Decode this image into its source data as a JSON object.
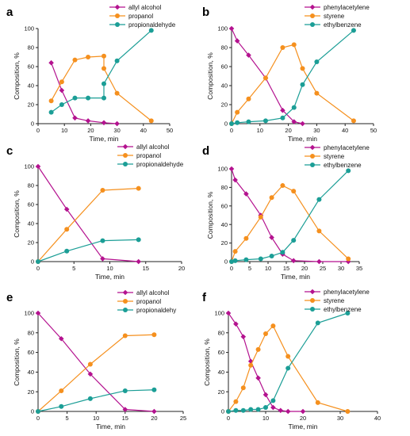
{
  "colors": {
    "magenta": "#b4128f",
    "orange": "#f5901e",
    "teal": "#1b9e96"
  },
  "chart_data": [
    {
      "letter": "a",
      "type": "line",
      "xlabel": "Time, min",
      "ylabel": "Composition, %",
      "xlim": [
        0,
        50
      ],
      "ylim": [
        0,
        100
      ],
      "xticks": [
        0,
        10,
        20,
        30,
        40,
        50
      ],
      "yticks": [
        0,
        20,
        40,
        60,
        80,
        100
      ],
      "legend_position": "top-center",
      "series": [
        {
          "name": "allyl alcohol",
          "marker": "diamond",
          "color": "#b4128f",
          "points": [
            [
              5,
              64
            ],
            [
              9,
              35
            ],
            [
              14,
              6
            ],
            [
              19,
              3
            ],
            [
              25,
              1
            ],
            [
              30,
              0
            ]
          ]
        },
        {
          "name": "propanol",
          "marker": "circle",
          "color": "#f5901e",
          "points": [
            [
              5,
              24
            ],
            [
              9,
              44
            ],
            [
              14,
              67
            ],
            [
              19,
              70
            ],
            [
              25,
              71
            ],
            [
              25,
              58
            ],
            [
              30,
              32
            ],
            [
              43,
              3
            ]
          ]
        },
        {
          "name": "propionaldehyde",
          "marker": "circle",
          "color": "#1b9e96",
          "points": [
            [
              5,
              12
            ],
            [
              9,
              20
            ],
            [
              14,
              27
            ],
            [
              19,
              27
            ],
            [
              25,
              27
            ],
            [
              25,
              42
            ],
            [
              30,
              66
            ],
            [
              43,
              98
            ]
          ]
        }
      ]
    },
    {
      "letter": "b",
      "type": "line",
      "xlabel": "Time, min",
      "ylabel": "Composition, %",
      "xlim": [
        0,
        50
      ],
      "ylim": [
        0,
        100
      ],
      "xticks": [
        0,
        10,
        20,
        30,
        40,
        50
      ],
      "yticks": [
        0,
        20,
        40,
        60,
        80,
        100
      ],
      "legend_position": "top-right",
      "series": [
        {
          "name": "phenylacetylene",
          "marker": "diamond",
          "color": "#b4128f",
          "points": [
            [
              0,
              100
            ],
            [
              2,
              87
            ],
            [
              6,
              72
            ],
            [
              12,
              48
            ],
            [
              18,
              14
            ],
            [
              22,
              2
            ],
            [
              25,
              0
            ]
          ]
        },
        {
          "name": "styrene",
          "marker": "circle",
          "color": "#f5901e",
          "points": [
            [
              0,
              0
            ],
            [
              2,
              12
            ],
            [
              6,
              26
            ],
            [
              12,
              48
            ],
            [
              18,
              80
            ],
            [
              22,
              83
            ],
            [
              25,
              58
            ],
            [
              30,
              32
            ],
            [
              43,
              3
            ]
          ]
        },
        {
          "name": "ethylbenzene",
          "marker": "circle",
          "color": "#1b9e96",
          "points": [
            [
              0,
              0
            ],
            [
              2,
              1
            ],
            [
              6,
              2
            ],
            [
              12,
              3
            ],
            [
              18,
              6
            ],
            [
              22,
              17
            ],
            [
              25,
              41
            ],
            [
              30,
              65
            ],
            [
              43,
              98
            ]
          ]
        }
      ]
    },
    {
      "letter": "c",
      "type": "line",
      "xlabel": "Time, min",
      "ylabel": "Composition, %",
      "xlim": [
        0,
        20
      ],
      "ylim": [
        0,
        100
      ],
      "xticks": [
        0,
        5,
        10,
        15,
        20
      ],
      "yticks": [
        0,
        20,
        40,
        60,
        80,
        100
      ],
      "legend_position": "top-center",
      "series": [
        {
          "name": "allyl alcohol",
          "marker": "diamond",
          "color": "#b4128f",
          "points": [
            [
              0,
              100
            ],
            [
              4,
              55
            ],
            [
              9,
              3
            ],
            [
              14,
              0
            ]
          ]
        },
        {
          "name": "propanol",
          "marker": "circle",
          "color": "#f5901e",
          "points": [
            [
              0,
              0
            ],
            [
              4,
              34
            ],
            [
              9,
              75
            ],
            [
              14,
              77
            ]
          ]
        },
        {
          "name": "propionaldehyde",
          "marker": "circle",
          "color": "#1b9e96",
          "points": [
            [
              0,
              0
            ],
            [
              4,
              11
            ],
            [
              9,
              22
            ],
            [
              14,
              23
            ]
          ]
        }
      ]
    },
    {
      "letter": "d",
      "type": "line",
      "xlabel": "Time, min",
      "ylabel": "Composition, %",
      "xlim": [
        0,
        35
      ],
      "ylim": [
        0,
        100
      ],
      "xticks": [
        0,
        5,
        10,
        15,
        20,
        25,
        30,
        35
      ],
      "yticks": [
        0,
        20,
        40,
        60,
        80,
        100
      ],
      "legend_position": "top-right",
      "series": [
        {
          "name": "phenylacetylene",
          "marker": "diamond",
          "color": "#b4128f",
          "points": [
            [
              0,
              100
            ],
            [
              1,
              88
            ],
            [
              4,
              73
            ],
            [
              8,
              50
            ],
            [
              11,
              26
            ],
            [
              14,
              8
            ],
            [
              17,
              1
            ],
            [
              24,
              0
            ],
            [
              32,
              0
            ]
          ]
        },
        {
          "name": "styrene",
          "marker": "circle",
          "color": "#f5901e",
          "points": [
            [
              0,
              0
            ],
            [
              1,
              11
            ],
            [
              4,
              25
            ],
            [
              8,
              48
            ],
            [
              11,
              69
            ],
            [
              14,
              82
            ],
            [
              17,
              76
            ],
            [
              24,
              33
            ],
            [
              32,
              3
            ]
          ]
        },
        {
          "name": "ethylbenzene",
          "marker": "circle",
          "color": "#1b9e96",
          "points": [
            [
              0,
              0
            ],
            [
              1,
              1
            ],
            [
              4,
              2
            ],
            [
              8,
              3
            ],
            [
              11,
              6
            ],
            [
              14,
              10
            ],
            [
              17,
              23
            ],
            [
              24,
              67
            ],
            [
              32,
              98
            ]
          ]
        }
      ]
    },
    {
      "letter": "e",
      "type": "line",
      "xlabel": "Time, min",
      "ylabel": "Composition, %",
      "xlim": [
        0,
        25
      ],
      "ylim": [
        0,
        100
      ],
      "xticks": [
        0,
        5,
        10,
        15,
        20,
        25
      ],
      "yticks": [
        0,
        20,
        40,
        60,
        80,
        100
      ],
      "legend_position": "top-center",
      "series": [
        {
          "name": "allyl alcohol",
          "marker": "diamond",
          "color": "#b4128f",
          "points": [
            [
              0,
              100
            ],
            [
              4,
              74
            ],
            [
              9,
              38
            ],
            [
              15,
              2
            ],
            [
              20,
              0
            ]
          ]
        },
        {
          "name": "propanol",
          "marker": "circle",
          "color": "#f5901e",
          "points": [
            [
              0,
              0
            ],
            [
              4,
              21
            ],
            [
              9,
              48
            ],
            [
              15,
              77
            ],
            [
              20,
              78
            ]
          ]
        },
        {
          "name": "propionaldehy",
          "marker": "circle",
          "color": "#1b9e96",
          "points": [
            [
              0,
              0
            ],
            [
              4,
              5
            ],
            [
              9,
              13
            ],
            [
              15,
              21
            ],
            [
              20,
              22
            ]
          ]
        }
      ]
    },
    {
      "letter": "f",
      "type": "line",
      "xlabel": "Time, min",
      "ylabel": "Composition, %",
      "xlim": [
        0,
        40
      ],
      "ylim": [
        0,
        100
      ],
      "xticks": [
        0,
        10,
        20,
        30,
        40
      ],
      "yticks": [
        0,
        20,
        40,
        60,
        80,
        100
      ],
      "legend_position": "top-right",
      "series": [
        {
          "name": "phenylacetylene",
          "marker": "diamond",
          "color": "#b4128f",
          "points": [
            [
              0,
              100
            ],
            [
              2,
              89
            ],
            [
              4,
              76
            ],
            [
              6,
              51
            ],
            [
              8,
              34
            ],
            [
              10,
              17
            ],
            [
              12,
              4
            ],
            [
              14,
              1
            ],
            [
              16,
              0
            ],
            [
              20,
              0
            ]
          ]
        },
        {
          "name": "styrene",
          "marker": "circle",
          "color": "#f5901e",
          "points": [
            [
              0,
              0
            ],
            [
              2,
              10
            ],
            [
              4,
              24
            ],
            [
              6,
              47
            ],
            [
              8,
              63
            ],
            [
              10,
              79
            ],
            [
              12,
              87
            ],
            [
              16,
              56
            ],
            [
              24,
              9
            ],
            [
              32,
              0
            ]
          ]
        },
        {
          "name": "ethylbenzene",
          "marker": "circle",
          "color": "#1b9e96",
          "points": [
            [
              0,
              0
            ],
            [
              2,
              1
            ],
            [
              4,
              1
            ],
            [
              6,
              2
            ],
            [
              8,
              2
            ],
            [
              10,
              4
            ],
            [
              12,
              11
            ],
            [
              16,
              44
            ],
            [
              24,
              90
            ],
            [
              32,
              100
            ]
          ]
        }
      ]
    }
  ]
}
